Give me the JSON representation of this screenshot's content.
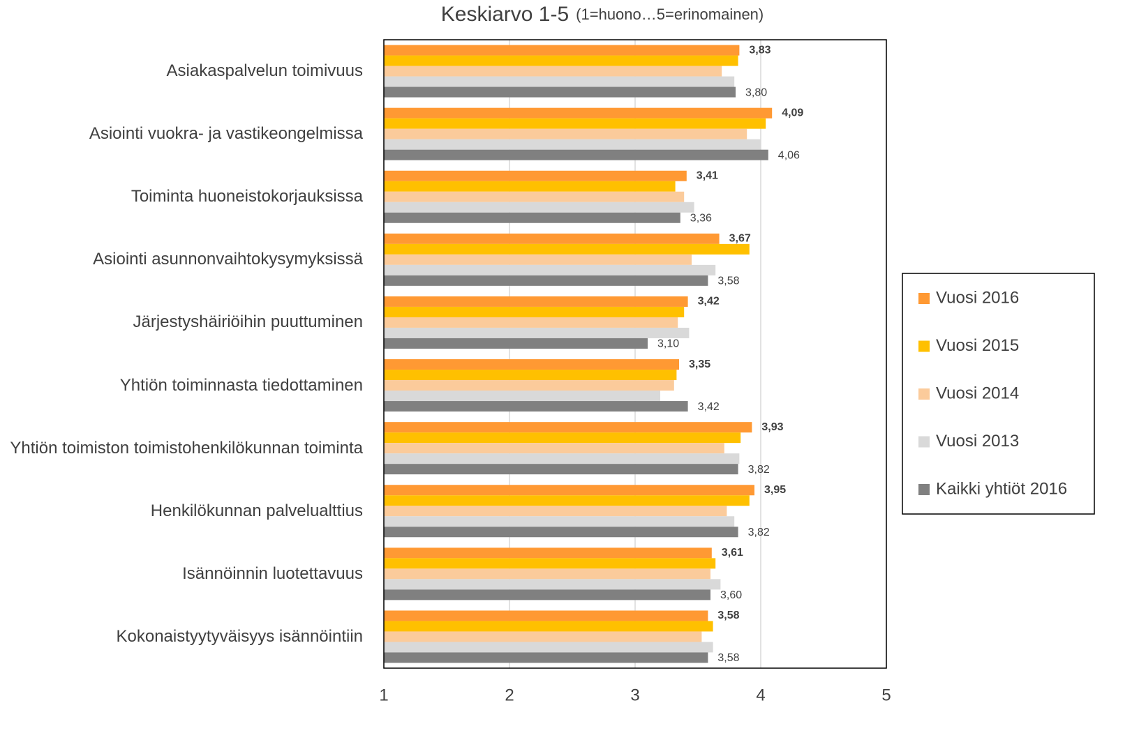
{
  "chart_data": {
    "type": "bar",
    "orientation": "horizontal",
    "title": "Keskiarvo 1-5",
    "subtitle": "(1=huono…5=erinomainen)",
    "categories": [
      "Asiakaspalvelun toimivuus",
      "Asiointi vuokra- ja vastikeongelmissa",
      "Toiminta huoneistokorjauksissa",
      "Asiointi asunnonvaihtokysymyksissä",
      "Järjestyshäiriöihin puuttuminen",
      "Yhtiön toiminnasta tiedottaminen",
      "Yhtiön toimiston toimistohenkilökunnan toiminta",
      "Henkilökunnan palvelualttius",
      "Isännöinnin luotettavuus",
      "Kokonaistyytyväisyys isännöintiin"
    ],
    "series": [
      {
        "name": "Vuosi 2016",
        "color": "#ff9933",
        "values": [
          3.83,
          4.09,
          3.41,
          3.67,
          3.42,
          3.35,
          3.93,
          3.95,
          3.61,
          3.58
        ],
        "value_labels": [
          "3,83",
          "4,09",
          "3,41",
          "3,67",
          "3,42",
          "3,35",
          "3,93",
          "3,95",
          "3,61",
          "3,58"
        ]
      },
      {
        "name": "Vuosi 2015",
        "color": "#ffc000",
        "values": [
          3.82,
          4.04,
          3.32,
          3.91,
          3.39,
          3.33,
          3.84,
          3.91,
          3.64,
          3.62
        ]
      },
      {
        "name": "Vuosi 2014",
        "color": "#fbcb9b",
        "values": [
          3.69,
          3.89,
          3.39,
          3.45,
          3.34,
          3.31,
          3.71,
          3.73,
          3.6,
          3.53
        ]
      },
      {
        "name": "Vuosi 2013",
        "color": "#d9d9d9",
        "values": [
          3.79,
          4.0,
          3.47,
          3.64,
          3.43,
          3.2,
          3.83,
          3.79,
          3.68,
          3.62
        ]
      },
      {
        "name": "Kaikki yhtiöt 2016",
        "color": "#808080",
        "values": [
          3.8,
          4.06,
          3.36,
          3.58,
          3.1,
          3.42,
          3.82,
          3.82,
          3.6,
          3.58
        ],
        "value_labels": [
          "3,80",
          "4,06",
          "3,36",
          "3,58",
          "3,10",
          "3,42",
          "3,82",
          "3,82",
          "3,60",
          "3,58"
        ]
      }
    ],
    "xlim": [
      1,
      5
    ],
    "xticks": [
      1,
      2,
      3,
      4,
      5
    ],
    "grid": true,
    "legend": "right"
  }
}
